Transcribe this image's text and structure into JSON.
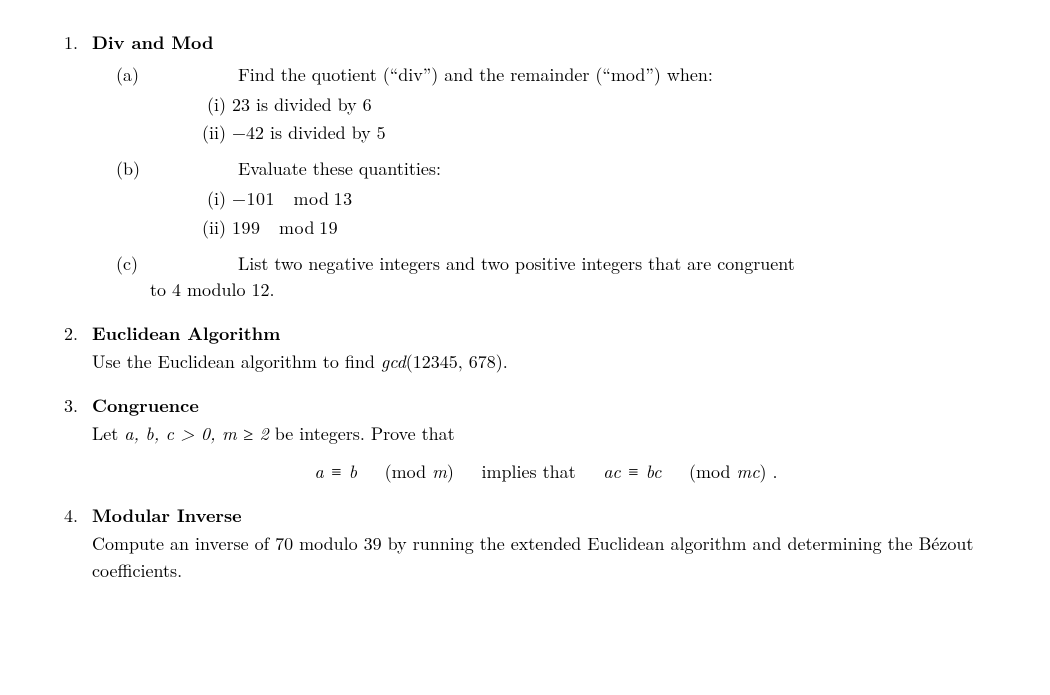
{
  "q1": {
    "num": "1.",
    "title": "Div and Mod",
    "a": {
      "lbl": "(a)",
      "intro": "Find the quotient (“div”) and the remainder (“mod”) when:",
      "i": {
        "lbl": "(i)",
        "text": "23 is divided by 6"
      },
      "ii": {
        "lbl": "(ii)",
        "text": "−42 is divided by 5"
      }
    },
    "b": {
      "lbl": "(b)",
      "intro": "Evaluate these quantities:",
      "i": {
        "lbl": "(i)",
        "text": "−101 mod 13"
      },
      "ii": {
        "lbl": "(ii)",
        "text": "199 mod 19"
      }
    },
    "c": {
      "lbl": "(c)",
      "text_lead": "List two negative integers and two positive integers that are congruent",
      "text_cont": "to 4 modulo 12."
    }
  },
  "q2": {
    "num": "2.",
    "title": "Euclidean Algorithm",
    "desc_pre": "Use the Euclidean algorithm to find ",
    "desc_math": "gcd",
    "desc_args": "(12345, 678)."
  },
  "q3": {
    "num": "3.",
    "title": "Congruence",
    "desc_pre": "Let ",
    "desc_vars": "a, b, c > 0, m ≥ 2",
    "desc_post": " be integers.  Prove that",
    "eq_lhs": "a ≡ b",
    "eq_mod1": "(mod ",
    "eq_m1": "m",
    "eq_close1": ")",
    "eq_impl": "implies that",
    "eq_rhs": "ac ≡ bc",
    "eq_mod2": "(mod ",
    "eq_m2": "mc",
    "eq_close2": ") ."
  },
  "q4": {
    "num": "4.",
    "title": "Modular Inverse",
    "desc": "Compute an inverse of 70 modulo 39 by running the extended Euclidean algorithm and determining the Bézout coefficients."
  }
}
